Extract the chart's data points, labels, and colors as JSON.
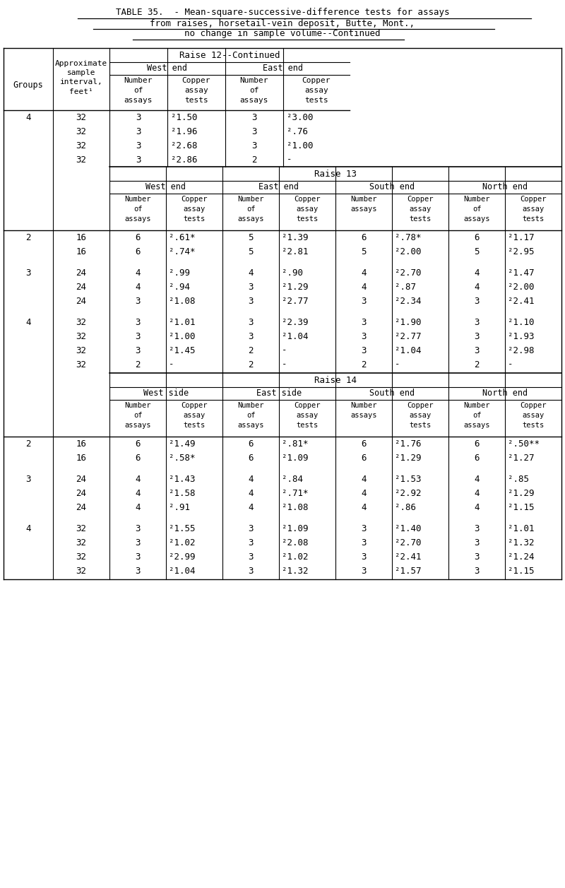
{
  "title_line1": "TABLE 35.  - Mean-square-successive-difference tests for assays",
  "title_line2": "from raises, horsetail-vein deposit, Butte, Mont.,",
  "title_line3": "no change in sample volume--Continued",
  "figsize": [
    8.0,
    12.57
  ],
  "bg_color": "#ffffff",
  "raise12_rows": [
    [
      "4",
      "32",
      "3",
      "²1.50",
      "3",
      "²3.00"
    ],
    [
      "",
      "32",
      "3",
      "²1.96",
      "3",
      "².76"
    ],
    [
      "",
      "32",
      "3",
      "²2.68",
      "3",
      "²1.00"
    ],
    [
      "",
      "32",
      "3",
      "²2.86",
      "2",
      "-"
    ]
  ],
  "raise13_rows": [
    [
      "2",
      "16",
      "6",
      "².61*",
      "5",
      "²1.39",
      "6",
      "².78*",
      "6",
      "²1.17"
    ],
    [
      "",
      "16",
      "6",
      "².74*",
      "5",
      "²2.81",
      "5",
      "²2.00",
      "5",
      "²2.95"
    ],
    [
      "3",
      "24",
      "4",
      "².99",
      "4",
      "².90",
      "4",
      "²2.70",
      "4",
      "²1.47"
    ],
    [
      "",
      "24",
      "4",
      "².94",
      "3",
      "²1.29",
      "4",
      "².87",
      "4",
      "²2.00"
    ],
    [
      "",
      "24",
      "3",
      "²1.08",
      "3",
      "²2.77",
      "3",
      "²2.34",
      "3",
      "²2.41"
    ],
    [
      "4",
      "32",
      "3",
      "²1.01",
      "3",
      "²2.39",
      "3",
      "²1.90",
      "3",
      "²1.10"
    ],
    [
      "",
      "32",
      "3",
      "²1.00",
      "3",
      "²1.04",
      "3",
      "²2.77",
      "3",
      "²1.93"
    ],
    [
      "",
      "32",
      "3",
      "²1.45",
      "2",
      "-",
      "3",
      "²1.04",
      "3",
      "²2.98"
    ],
    [
      "",
      "32",
      "2",
      "-",
      "2",
      "-",
      "2",
      "-",
      "2",
      "-"
    ]
  ],
  "raise14_rows": [
    [
      "2",
      "16",
      "6",
      "²1.49",
      "6",
      "².81*",
      "6",
      "²1.76",
      "6",
      "².50**"
    ],
    [
      "",
      "16",
      "6",
      "².58*",
      "6",
      "²1.09",
      "6",
      "²1.29",
      "6",
      "²1.27"
    ],
    [
      "3",
      "24",
      "4",
      "²1.43",
      "4",
      "².84",
      "4",
      "²1.53",
      "4",
      "².85"
    ],
    [
      "",
      "24",
      "4",
      "²1.58",
      "4",
      "².71*",
      "4",
      "²2.92",
      "4",
      "²1.29"
    ],
    [
      "",
      "24",
      "4",
      "².91",
      "4",
      "²1.08",
      "4",
      "².86",
      "4",
      "²1.15"
    ],
    [
      "4",
      "32",
      "3",
      "²1.55",
      "3",
      "²1.09",
      "3",
      "²1.40",
      "3",
      "²1.01"
    ],
    [
      "",
      "32",
      "3",
      "²1.02",
      "3",
      "²2.08",
      "3",
      "²2.70",
      "3",
      "²1.32"
    ],
    [
      "",
      "32",
      "3",
      "²2.99",
      "3",
      "²1.02",
      "3",
      "²2.41",
      "3",
      "²1.24"
    ],
    [
      "",
      "32",
      "3",
      "²1.04",
      "3",
      "²1.32",
      "3",
      "²1.57",
      "3",
      "²1.15"
    ]
  ],
  "raise13_ends": [
    "West end",
    "East end",
    "South end",
    "North end"
  ],
  "raise14_ends": [
    "West side",
    "East side",
    "South end",
    "North end"
  ],
  "col_sub_headers_even": [
    "Number",
    "of",
    "assays"
  ],
  "col_sub_headers_odd": [
    "Copper",
    "assay",
    "tests"
  ],
  "col_sub_headers_south": [
    "Number",
    "assays",
    ""
  ]
}
